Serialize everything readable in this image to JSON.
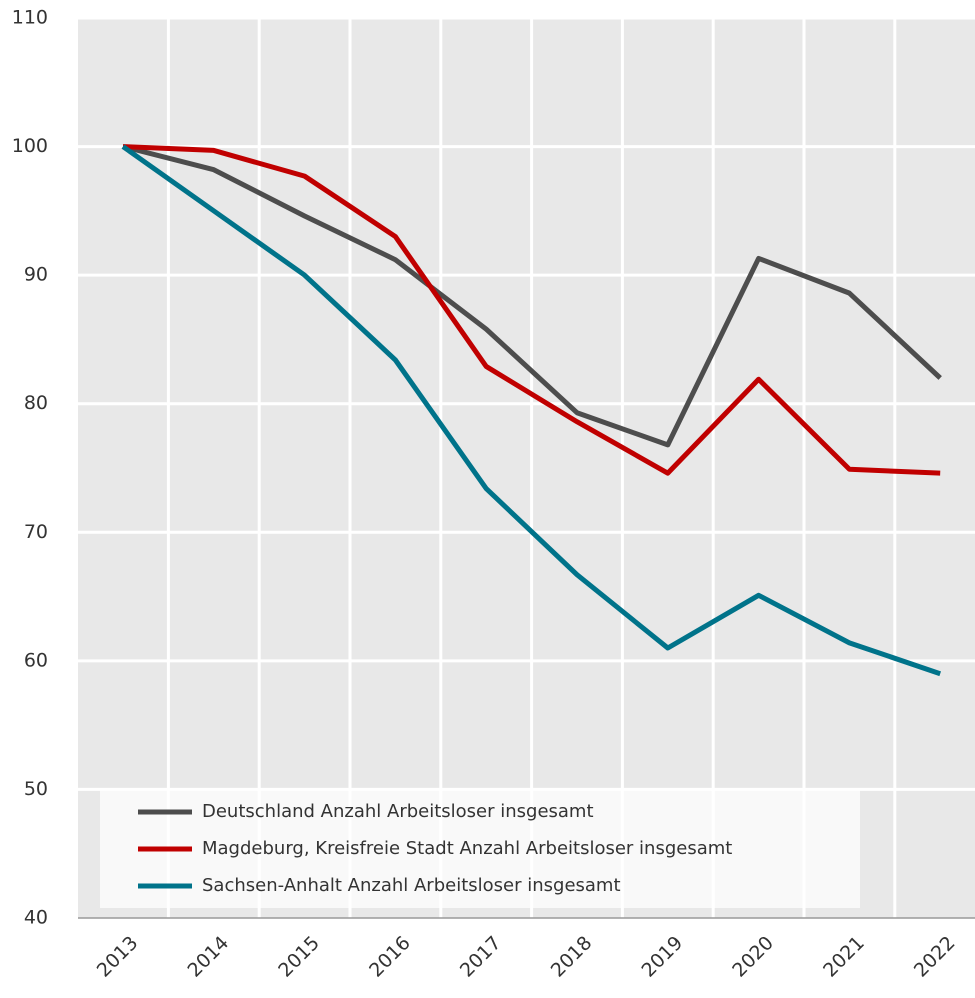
{
  "chart_data": {
    "type": "line",
    "categories": [
      "2013",
      "2014",
      "2015",
      "2016",
      "2017",
      "2018",
      "2019",
      "2020",
      "2021",
      "2022"
    ],
    "series": [
      {
        "name": "Deutschland Anzahl Arbeitsloser insgesamt",
        "color": "#4d4d4d",
        "values": [
          100,
          98.2,
          94.6,
          91.2,
          85.8,
          79.3,
          76.8,
          91.3,
          88.6,
          82.0
        ]
      },
      {
        "name": "Magdeburg, Kreisfreie Stadt Anzahl Arbeitsloser insgesamt",
        "color": "#c00000",
        "values": [
          100,
          99.7,
          97.7,
          93.0,
          82.9,
          78.6,
          74.6,
          81.9,
          74.9,
          74.6
        ]
      },
      {
        "name": "Sachsen-Anhalt Anzahl Arbeitsloser insgesamt",
        "color": "#00738a",
        "values": [
          100,
          95.0,
          90.0,
          83.4,
          73.4,
          66.7,
          61.0,
          65.1,
          61.4,
          59.0
        ]
      }
    ],
    "ylim": [
      40,
      110
    ],
    "yticks": [
      40,
      50,
      60,
      70,
      80,
      90,
      100,
      110
    ],
    "grid": true,
    "legend": "bottom"
  }
}
